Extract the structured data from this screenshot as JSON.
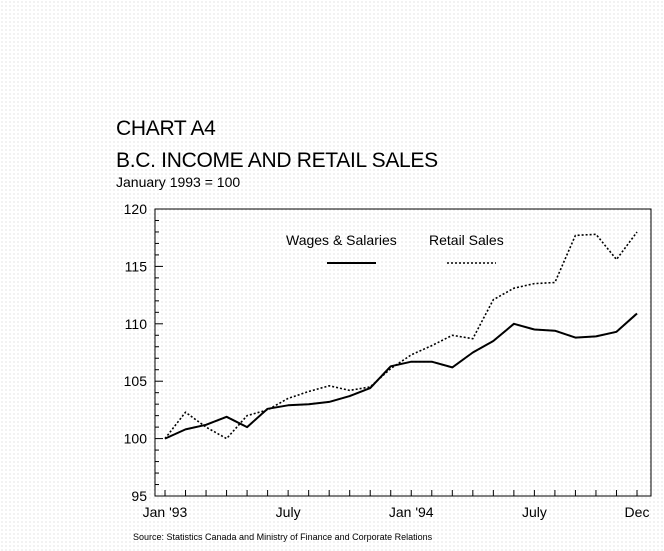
{
  "chart_data": {
    "type": "line",
    "title": "CHART A4",
    "subtitle": "B.C. INCOME AND RETAIL SALES",
    "note": "January 1993 = 100",
    "source": "Source:  Statistics Canada and Ministry of Finance and Corporate Relations",
    "xlabel": "",
    "ylabel": "",
    "ylim": [
      95,
      120
    ],
    "yticks": [
      "95",
      "100",
      "105",
      "110",
      "115",
      "120"
    ],
    "x_tick_labels": [
      {
        "label": "Jan '93",
        "index": 0
      },
      {
        "label": "July",
        "index": 6
      },
      {
        "label": "Jan '94",
        "index": 12
      },
      {
        "label": "July",
        "index": 18
      },
      {
        "label": "Dec",
        "index": 23
      }
    ],
    "x": [
      "Jan 93",
      "Feb 93",
      "Mar 93",
      "Apr 93",
      "May 93",
      "Jun 93",
      "Jul 93",
      "Aug 93",
      "Sep 93",
      "Oct 93",
      "Nov 93",
      "Dec 93",
      "Jan 94",
      "Feb 94",
      "Mar 94",
      "Apr 94",
      "May 94",
      "Jun 94",
      "Jul 94",
      "Aug 94",
      "Sep 94",
      "Oct 94",
      "Nov 94",
      "Dec 94"
    ],
    "series": [
      {
        "name": "Wages & Salaries",
        "style": "solid",
        "color": "#000000",
        "values": [
          100.0,
          100.8,
          101.2,
          101.9,
          101.0,
          102.6,
          102.9,
          103.0,
          103.2,
          103.7,
          104.4,
          106.3,
          106.7,
          106.7,
          106.2,
          107.5,
          108.5,
          110.0,
          109.5,
          109.4,
          108.8,
          108.9,
          109.3,
          110.9
        ]
      },
      {
        "name": "Retail Sales",
        "style": "dotted",
        "color": "#000000",
        "values": [
          100.0,
          102.3,
          101.0,
          100.0,
          102.0,
          102.5,
          103.5,
          104.1,
          104.6,
          104.2,
          104.5,
          106.1,
          107.3,
          108.1,
          109.0,
          108.7,
          112.1,
          113.1,
          113.5,
          113.6,
          117.7,
          117.8,
          115.6,
          118.0
        ]
      }
    ],
    "legend": "top-right, inside plot",
    "grid": false
  }
}
